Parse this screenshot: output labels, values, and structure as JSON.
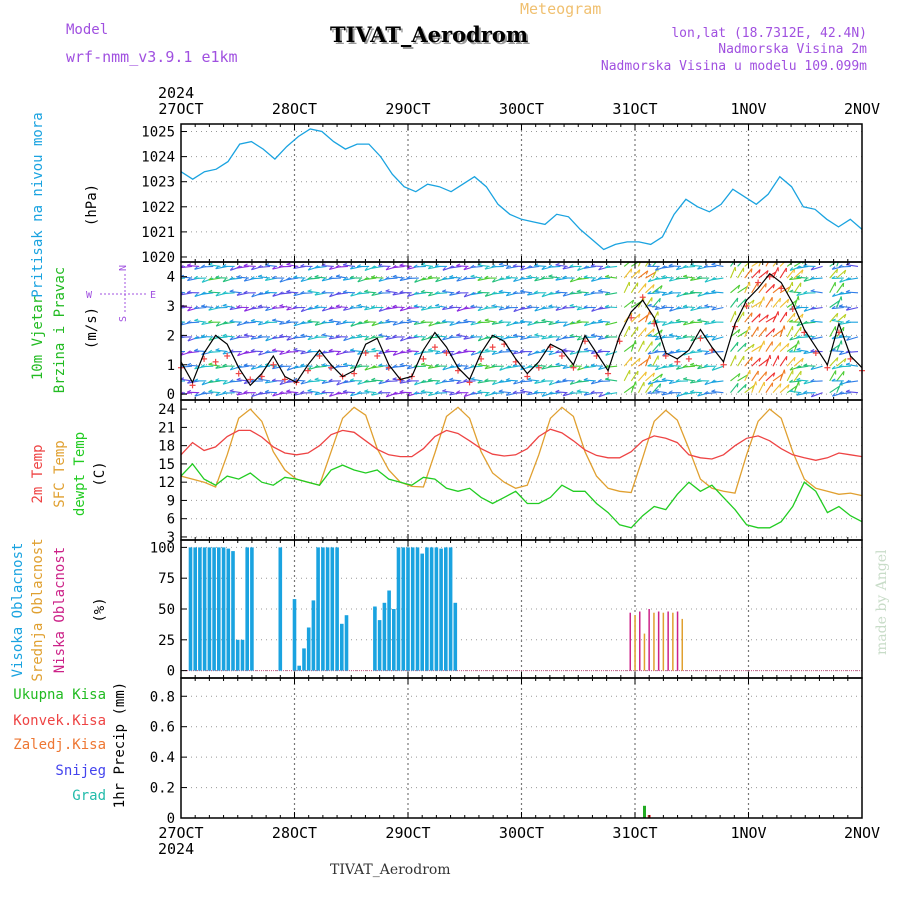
{
  "header": {
    "model_label": "Model",
    "model_name": "wrf-nmm_v3.9.1  e1km",
    "product": "Meteogram",
    "title": "TIVAT_Aerodrom",
    "lonlat": "lon,lat (18.7312E, 42.4N)",
    "elevation": "Nadmorska Visina 2m",
    "model_elevation": "Nadmorska Visina u modelu 109.099m",
    "year_top": "2024",
    "year_bottom": "2024",
    "footer_station": "TIVAT_Aerodrom",
    "credit": "made by Angel"
  },
  "colors": {
    "pressure": "#1aa3e0",
    "wind_label": "#22bb22",
    "wind_speed_line": "#000000",
    "gust": "#ee4444",
    "temp2m": "#ee4444",
    "sfctemp": "#e0a030",
    "dewpt": "#22cc22",
    "high_cloud": "#1aa3e0",
    "mid_cloud": "#e0a030",
    "low_cloud": "#cc2288",
    "grid": "#888888"
  },
  "chart_data": [
    {
      "type": "line",
      "panel": "pressure",
      "ylabel": "Pritisak na nivou mora",
      "unit": "(hPa)",
      "x_ticks": [
        "27OCT",
        "28OCT",
        "29OCT",
        "30OCT",
        "31OCT",
        "1NOV",
        "2NOV"
      ],
      "y_ticks": [
        1020,
        1021,
        1022,
        1023,
        1024,
        1025
      ],
      "ylim": [
        1019.8,
        1025.3
      ],
      "grid": true,
      "series": [
        {
          "values": [
            1023.4,
            1023.1,
            1023.4,
            1023.5,
            1023.8,
            1024.5,
            1024.6,
            1024.3,
            1023.9,
            1024.4,
            1024.8,
            1025.1,
            1025.0,
            1024.6,
            1024.3,
            1024.5,
            1024.5,
            1024.0,
            1023.3,
            1022.8,
            1022.6,
            1022.9,
            1022.8,
            1022.6,
            1022.9,
            1023.2,
            1022.8,
            1022.1,
            1021.7,
            1021.5,
            1021.4,
            1021.3,
            1021.7,
            1021.6,
            1021.1,
            1020.7,
            1020.3,
            1020.5,
            1020.6,
            1020.6,
            1020.5,
            1020.8,
            1021.7,
            1022.3,
            1022.0,
            1021.8,
            1022.1,
            1022.7,
            1022.4,
            1022.1,
            1022.5,
            1023.2,
            1022.8,
            1022.0,
            1021.9,
            1021.5,
            1021.2,
            1021.5,
            1021.1
          ]
        }
      ]
    },
    {
      "type": "line",
      "panel": "wind",
      "ylabel": "10m Vjetar Brzina i Pravac",
      "unit": "(m/s)",
      "compass": [
        "N",
        "S",
        "W",
        "E"
      ],
      "y_ticks": [
        0,
        1,
        2,
        3,
        4
      ],
      "ylim": [
        -0.2,
        4.5
      ],
      "grid": true,
      "series": [
        {
          "name": "speed",
          "values": [
            1.1,
            0.4,
            1.4,
            2.0,
            1.7,
            0.9,
            0.3,
            0.7,
            1.3,
            0.6,
            0.4,
            1.0,
            1.5,
            1.0,
            0.6,
            0.8,
            1.7,
            1.9,
            1.0,
            0.5,
            0.6,
            1.5,
            2.1,
            1.6,
            0.9,
            0.5,
            1.4,
            2.0,
            1.8,
            1.2,
            0.7,
            1.1,
            1.7,
            1.5,
            1.0,
            2.0,
            1.4,
            0.8,
            2.0,
            2.8,
            3.2,
            2.6,
            1.4,
            1.2,
            1.5,
            2.2,
            1.6,
            1.1,
            2.4,
            3.2,
            3.6,
            4.1,
            3.8,
            3.1,
            2.2,
            1.6,
            1.0,
            2.4,
            1.3,
            0.9
          ]
        },
        {
          "name": "gust",
          "values": [
            0.9,
            0.3,
            1.2,
            1.1,
            1.3,
            0.7,
            0.5,
            0.6,
            1.0,
            0.5,
            0.4,
            0.8,
            1.3,
            0.9,
            0.6,
            0.7,
            1.4,
            1.3,
            0.9,
            0.5,
            0.6,
            1.2,
            1.6,
            1.4,
            0.8,
            0.4,
            1.2,
            1.6,
            1.7,
            1.1,
            0.6,
            0.9,
            1.6,
            1.3,
            0.9,
            1.8,
            1.3,
            0.7,
            1.8,
            2.6,
            3.3,
            2.4,
            1.3,
            1.1,
            1.2,
            1.9,
            1.5,
            1.0,
            2.3,
            3.0,
            3.8,
            4.0,
            3.6,
            2.9,
            2.1,
            1.4,
            0.9,
            2.1,
            1.2,
            0.8
          ]
        }
      ]
    },
    {
      "type": "line",
      "panel": "temperature",
      "ylabel": "2m Temp / SFC Temp / dewpt Temp",
      "unit": "(C)",
      "series_labels": [
        "2m Temp",
        "SFC Temp",
        "dewpt Temp"
      ],
      "y_ticks": [
        3,
        6,
        9,
        12,
        15,
        18,
        21,
        24
      ],
      "ylim": [
        2.5,
        25.5
      ],
      "grid": true,
      "series": [
        {
          "values": [
            16.5,
            18.5,
            17.2,
            17.8,
            19.5,
            20.5,
            20.5,
            19.4,
            17.8,
            16.8,
            16.5,
            16.8,
            18.0,
            19.8,
            20.5,
            20.2,
            18.8,
            17.4,
            16.5,
            16.2,
            16.2,
            17.5,
            19.5,
            20.5,
            20.0,
            18.8,
            17.5,
            16.6,
            16.3,
            16.5,
            17.5,
            19.5,
            20.7,
            20.1,
            18.8,
            17.3,
            16.4,
            16.0,
            16.0,
            17.0,
            18.8,
            19.6,
            19.2,
            18.5,
            16.5,
            16.0,
            15.8,
            16.5,
            18.0,
            19.2,
            19.6,
            18.8,
            17.5,
            16.5,
            16.0,
            15.6,
            16.0,
            16.8,
            16.5,
            16.2
          ]
        },
        {
          "values": [
            13.0,
            12.5,
            12.0,
            11.2,
            16.5,
            22.5,
            24.0,
            22.0,
            17.0,
            14.0,
            12.5,
            12.0,
            11.5,
            17.0,
            22.5,
            24.3,
            23.0,
            17.5,
            14.0,
            12.0,
            11.3,
            11.2,
            16.8,
            22.8,
            24.3,
            22.5,
            17.0,
            13.5,
            12.0,
            11.0,
            11.5,
            16.5,
            22.5,
            24.3,
            22.8,
            17.0,
            13.0,
            11.0,
            10.5,
            10.3,
            16.0,
            22.0,
            23.8,
            22.2,
            17.5,
            12.5,
            11.0,
            10.5,
            10.2,
            16.5,
            22.0,
            24.0,
            22.5,
            17.0,
            12.5,
            11.0,
            10.5,
            10.0,
            10.2,
            9.8
          ]
        },
        {
          "values": [
            13.0,
            15.0,
            12.5,
            11.5,
            13.0,
            12.5,
            13.5,
            12.0,
            11.5,
            12.8,
            12.5,
            12.0,
            11.5,
            14.0,
            14.8,
            14.0,
            13.5,
            14.0,
            12.5,
            12.0,
            11.5,
            12.8,
            12.5,
            11.0,
            10.5,
            11.0,
            9.5,
            8.5,
            9.5,
            10.5,
            8.5,
            8.5,
            9.5,
            11.5,
            10.5,
            10.5,
            8.5,
            7.0,
            5.0,
            4.5,
            6.5,
            8.0,
            7.5,
            10.0,
            12.0,
            10.5,
            11.5,
            9.5,
            7.5,
            5.0,
            4.5,
            4.5,
            5.5,
            8.0,
            12.0,
            10.5,
            7.0,
            8.0,
            6.5,
            5.5
          ]
        }
      ]
    },
    {
      "type": "bar",
      "panel": "cloud",
      "ylabel": "Visoka Oblacnost / Srednja Oblacnost / Niska Oblacnost",
      "series_labels": [
        "Visoka Oblacnost",
        "Srednja Oblacnost",
        "Niska Oblacnost"
      ],
      "unit": "(%)",
      "y_ticks": [
        0,
        25,
        50,
        75,
        100
      ],
      "ylim": [
        -6,
        106
      ],
      "grid": true,
      "series": [
        {
          "name": "high",
          "hours": [
            2,
            3,
            4,
            5,
            6,
            7,
            8,
            9,
            10,
            11,
            12,
            13,
            14,
            15,
            21,
            22,
            23,
            24,
            25,
            26,
            27,
            28,
            29,
            30,
            31,
            32,
            33,
            34,
            35,
            36,
            37,
            38,
            39,
            40,
            41,
            42,
            43,
            44,
            45,
            46,
            47,
            48,
            49,
            50,
            51,
            52,
            53,
            54,
            55,
            56,
            57,
            58,
            59,
            60,
            61,
            62,
            63,
            64,
            65,
            66
          ],
          "values": [
            100,
            100,
            100,
            100,
            100,
            100,
            100,
            100,
            99,
            97,
            25,
            25,
            100,
            100,
            100,
            0,
            0,
            58,
            4,
            18,
            35,
            57,
            100,
            100,
            100,
            100,
            100,
            38,
            45,
            0,
            0,
            0,
            0,
            0,
            52,
            41,
            55,
            65,
            50,
            100,
            100,
            100,
            100,
            100,
            95,
            100,
            100,
            100,
            99,
            100,
            100,
            55,
            0,
            0,
            0,
            0,
            0,
            0,
            0,
            0
          ]
        },
        {
          "name": "mid",
          "hours": [
            96,
            98,
            100,
            102,
            104,
            106
          ],
          "values": [
            45,
            30,
            47,
            47,
            47,
            42
          ]
        },
        {
          "name": "low",
          "hours": [
            95,
            97,
            99,
            101,
            103,
            105
          ],
          "values": [
            47,
            48,
            50,
            48,
            48,
            48
          ]
        }
      ]
    },
    {
      "type": "bar",
      "panel": "precip",
      "ylabel": "1hr Precip (mm)",
      "series_labels": [
        "Ukupna Kisa",
        "Konvek.Kisa",
        "Zaledj.Kisa",
        "Snijeg",
        "Grad"
      ],
      "y_ticks": [
        0,
        0.2,
        0.4,
        0.6,
        0.8
      ],
      "ylim": [
        0,
        0.92
      ],
      "grid": true,
      "series": [
        {
          "name": "Ukupna Kisa",
          "hours": [
            98
          ],
          "values": [
            0.08
          ]
        },
        {
          "name": "Konvek.Kisa",
          "hours": [
            99
          ],
          "values": [
            0.02
          ]
        }
      ]
    }
  ]
}
